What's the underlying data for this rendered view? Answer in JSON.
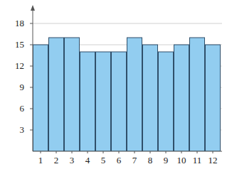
{
  "chart_data": {
    "type": "bar",
    "categories": [
      "1",
      "2",
      "3",
      "4",
      "5",
      "6",
      "7",
      "8",
      "9",
      "10",
      "11",
      "12"
    ],
    "values": [
      15,
      16,
      16,
      14,
      14,
      14,
      16,
      15,
      14,
      15,
      16,
      15
    ],
    "color": "#92cdf0",
    "ylim": [
      0,
      20
    ],
    "yticks": [
      3,
      6,
      9,
      12,
      15,
      18
    ],
    "grid": true
  }
}
